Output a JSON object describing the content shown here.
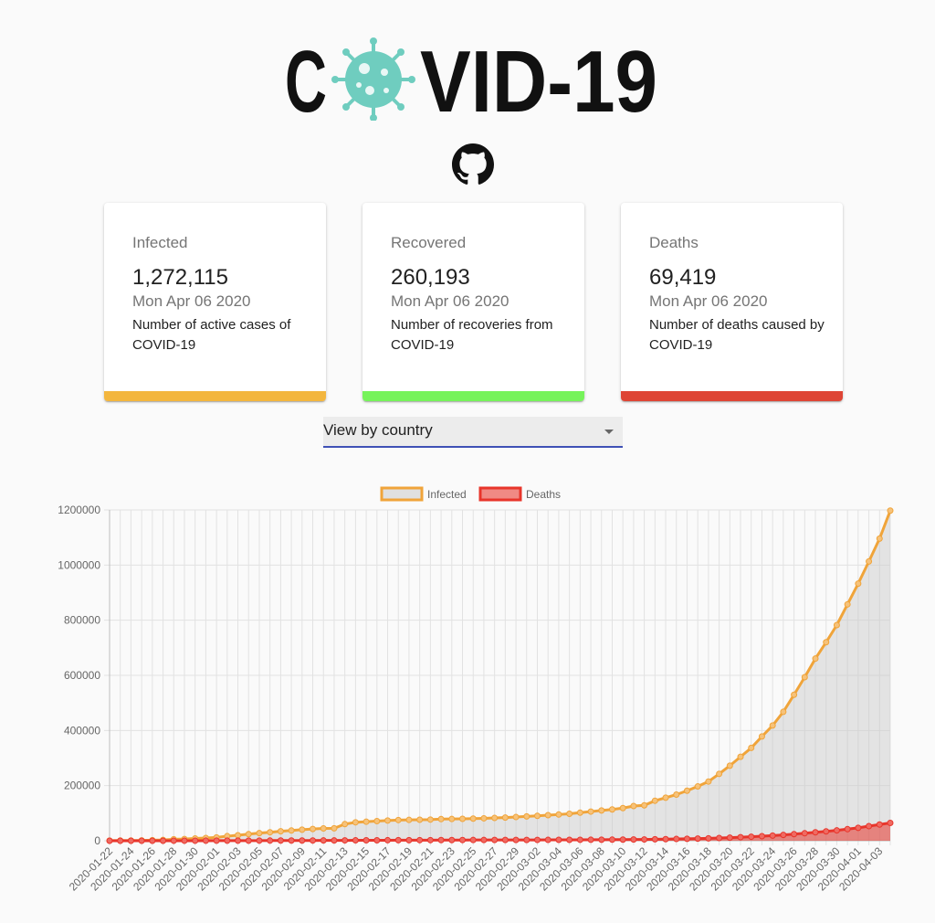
{
  "header": {
    "logo_text_left": "C",
    "logo_text_right": "VID-19",
    "logo_icon": "virus-icon",
    "github_icon": "github-icon"
  },
  "cards": [
    {
      "label": "Infected",
      "value": "1,272,115",
      "date": "Mon Apr 06 2020",
      "desc": "Number of active cases of COVID-19",
      "color": "#f3b63e"
    },
    {
      "label": "Recovered",
      "value": "260,193",
      "date": "Mon Apr 06 2020",
      "desc": "Number of recoveries from COVID-19",
      "color": "#76f35a"
    },
    {
      "label": "Deaths",
      "value": "69,419",
      "date": "Mon Apr 06 2020",
      "desc": "Number of deaths caused by COVID-19",
      "color": "#de4535"
    }
  ],
  "country_select": {
    "value": "View by country"
  },
  "colors": {
    "accent": "#3f51b5",
    "logo_virus": "#6fcdbf",
    "infected_line": "#f0a43a",
    "deaths_line": "#e8352b"
  },
  "chart_data": {
    "type": "line",
    "x": [
      "2020-01-22",
      "2020-01-23",
      "2020-01-24",
      "2020-01-25",
      "2020-01-26",
      "2020-01-27",
      "2020-01-28",
      "2020-01-29",
      "2020-01-30",
      "2020-01-31",
      "2020-02-01",
      "2020-02-02",
      "2020-02-03",
      "2020-02-04",
      "2020-02-05",
      "2020-02-06",
      "2020-02-07",
      "2020-02-08",
      "2020-02-09",
      "2020-02-10",
      "2020-02-11",
      "2020-02-12",
      "2020-02-13",
      "2020-02-14",
      "2020-02-15",
      "2020-02-16",
      "2020-02-17",
      "2020-02-18",
      "2020-02-19",
      "2020-02-20",
      "2020-02-21",
      "2020-02-22",
      "2020-02-23",
      "2020-02-24",
      "2020-02-25",
      "2020-02-26",
      "2020-02-27",
      "2020-02-28",
      "2020-02-29",
      "2020-03-01",
      "2020-03-02",
      "2020-03-03",
      "2020-03-04",
      "2020-03-05",
      "2020-03-06",
      "2020-03-07",
      "2020-03-08",
      "2020-03-09",
      "2020-03-10",
      "2020-03-11",
      "2020-03-12",
      "2020-03-13",
      "2020-03-14",
      "2020-03-15",
      "2020-03-16",
      "2020-03-17",
      "2020-03-18",
      "2020-03-19",
      "2020-03-20",
      "2020-03-21",
      "2020-03-22",
      "2020-03-23",
      "2020-03-24",
      "2020-03-25",
      "2020-03-26",
      "2020-03-27",
      "2020-03-28",
      "2020-03-29",
      "2020-03-30",
      "2020-03-31",
      "2020-04-01",
      "2020-04-02",
      "2020-04-03",
      "2020-04-04"
    ],
    "x_tick_labels": [
      "2020-01-22",
      "2020-01-24",
      "2020-01-26",
      "2020-01-28",
      "2020-01-30",
      "2020-02-01",
      "2020-02-03",
      "2020-02-05",
      "2020-02-07",
      "2020-02-09",
      "2020-02-11",
      "2020-02-13",
      "2020-02-15",
      "2020-02-17",
      "2020-02-19",
      "2020-02-21",
      "2020-02-23",
      "2020-02-25",
      "2020-02-27",
      "2020-02-29",
      "2020-03-02",
      "2020-03-04",
      "2020-03-06",
      "2020-03-08",
      "2020-03-10",
      "2020-03-12",
      "2020-03-14",
      "2020-03-16",
      "2020-03-18",
      "2020-03-20",
      "2020-03-22",
      "2020-03-24",
      "2020-03-26",
      "2020-03-28",
      "2020-03-30",
      "2020-04-01",
      "2020-04-03"
    ],
    "series": [
      {
        "name": "Infected",
        "values": [
          555,
          654,
          941,
          1434,
          2118,
          2927,
          5578,
          6166,
          8234,
          9927,
          12038,
          16787,
          19881,
          23892,
          27635,
          30794,
          34391,
          37120,
          40150,
          42762,
          44802,
          45221,
          60368,
          66885,
          69030,
          71224,
          73258,
          75136,
          75639,
          76197,
          76819,
          78572,
          78958,
          79561,
          80406,
          81388,
          82746,
          84112,
          86011,
          88369,
          90306,
          92840,
          95120,
          97886,
          101801,
          105847,
          109821,
          113590,
          118620,
          125875,
          128352,
          145205,
          156101,
          167454,
          181574,
          197102,
          214821,
          242570,
          272208,
          304507,
          336953,
          378235,
          418045,
          467653,
          529591,
          593291,
          660706,
          720117,
          782365,
          857487,
          932605,
          1013157,
          1095917,
          1197405
        ]
      },
      {
        "name": "Deaths",
        "values": [
          17,
          18,
          26,
          42,
          56,
          82,
          131,
          133,
          171,
          213,
          259,
          362,
          426,
          492,
          564,
          634,
          719,
          806,
          906,
          1013,
          1113,
          1118,
          1371,
          1523,
          1666,
          1770,
          1868,
          2007,
          2122,
          2247,
          2251,
          2458,
          2469,
          2629,
          2708,
          2770,
          2814,
          2872,
          2941,
          2996,
          3085,
          3160,
          3254,
          3348,
          3460,
          3558,
          3802,
          3988,
          4262,
          4615,
          4720,
          5404,
          5819,
          6440,
          7126,
          7905,
          8733,
          9867,
          11299,
          12973,
          14651,
          16505,
          18625,
          21181,
          23970,
          27198,
          30652,
          33925,
          37582,
          42107,
          46809,
          52983,
          58787,
          64606
        ]
      }
    ],
    "yticks": [
      "0",
      "200000",
      "400000",
      "600000",
      "800000",
      "1000000",
      "1200000"
    ],
    "ylim": [
      0,
      1200000
    ],
    "grid": true,
    "legend": "top-center"
  }
}
